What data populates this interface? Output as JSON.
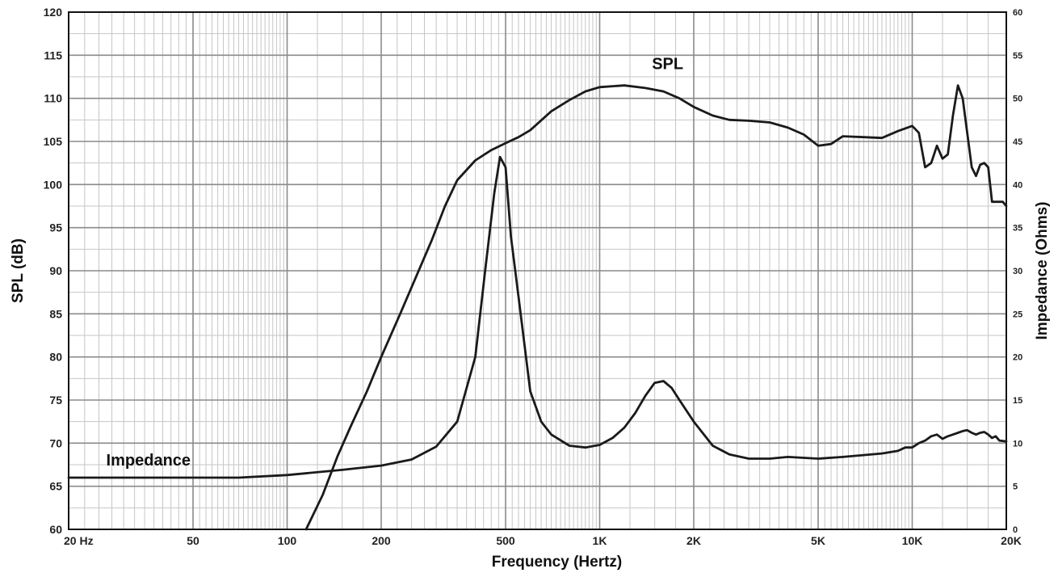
{
  "chart_data": {
    "type": "line",
    "xlabel": "Frequency (Hertz)",
    "ylabel_left": "SPL (dB)",
    "ylabel_right": "Impedance (Ohms)",
    "x_scale": "log",
    "xlim": [
      20,
      20000
    ],
    "ylim_left": [
      60,
      120
    ],
    "ylim_right": [
      0,
      60
    ],
    "grid": true,
    "x_ticks": [
      {
        "value": 20,
        "label": "20  Hz"
      },
      {
        "value": 50,
        "label": "50"
      },
      {
        "value": 100,
        "label": "100"
      },
      {
        "value": 200,
        "label": "200"
      },
      {
        "value": 500,
        "label": "500"
      },
      {
        "value": 1000,
        "label": "1K"
      },
      {
        "value": 2000,
        "label": "2K"
      },
      {
        "value": 5000,
        "label": "5K"
      },
      {
        "value": 10000,
        "label": "10K"
      },
      {
        "value": 20000,
        "label": "20K"
      }
    ],
    "y_ticks_left": [
      60,
      65,
      70,
      75,
      80,
      85,
      90,
      95,
      100,
      105,
      110,
      115,
      120
    ],
    "y_ticks_right": [
      0,
      5,
      10,
      15,
      20,
      25,
      30,
      35,
      40,
      45,
      50,
      55,
      60
    ],
    "annotations": [
      {
        "text": "SPL",
        "x": 1650,
        "y": 113.4
      },
      {
        "text": "Impedance",
        "x": 36,
        "y": 67.4
      }
    ],
    "series": [
      {
        "axis": "left",
        "x": [
          115,
          130,
          145,
          160,
          180,
          200,
          230,
          260,
          290,
          320,
          350,
          400,
          450,
          500,
          550,
          600,
          700,
          800,
          900,
          1000,
          1200,
          1400,
          1600,
          1800,
          2000,
          2300,
          2600,
          3000,
          3500,
          4000,
          4500,
          5000,
          5500,
          6000,
          7000,
          8000,
          9000,
          10000,
          10500,
          11000,
          11500,
          12000,
          12500,
          13000,
          13500,
          14000,
          14500,
          15000,
          15500,
          16000,
          16500,
          17000,
          17500,
          18000,
          18500,
          19000,
          19500,
          20000
        ],
        "y": [
          60,
          64,
          68.5,
          72,
          76,
          80,
          85,
          89.5,
          93.5,
          97.5,
          100.5,
          102.8,
          104,
          104.8,
          105.5,
          106.3,
          108.5,
          109.8,
          110.8,
          111.3,
          111.5,
          111.2,
          110.8,
          110,
          109,
          108,
          107.5,
          107.4,
          107.2,
          106.6,
          105.8,
          104.5,
          104.7,
          105.6,
          105.5,
          105.4,
          106.2,
          106.8,
          106,
          102,
          102.5,
          104.5,
          103,
          103.5,
          108,
          111.5,
          110,
          106,
          102,
          101,
          102.3,
          102.5,
          102,
          98,
          98,
          98,
          98,
          97.5
        ]
      },
      {
        "axis": "right",
        "x": [
          20,
          50,
          70,
          100,
          150,
          200,
          250,
          300,
          350,
          400,
          430,
          460,
          480,
          500,
          520,
          550,
          600,
          650,
          700,
          800,
          900,
          1000,
          1100,
          1200,
          1300,
          1400,
          1500,
          1600,
          1700,
          1800,
          2000,
          2300,
          2600,
          3000,
          3500,
          4000,
          5000,
          6000,
          8000,
          9000,
          9500,
          10000,
          10500,
          11000,
          11500,
          12000,
          12500,
          13000,
          13500,
          14000,
          14500,
          15000,
          15500,
          16000,
          16500,
          17000,
          17500,
          18000,
          18500,
          19000,
          20000
        ],
        "y": [
          6,
          6,
          6,
          6.3,
          6.9,
          7.4,
          8.1,
          9.6,
          12.5,
          20,
          30,
          39,
          43.2,
          42,
          34,
          27,
          16,
          12.5,
          11,
          9.7,
          9.5,
          9.8,
          10.6,
          11.8,
          13.5,
          15.5,
          17,
          17.2,
          16.4,
          15,
          12.5,
          9.7,
          8.7,
          8.2,
          8.2,
          8.4,
          8.2,
          8.4,
          8.8,
          9.1,
          9.5,
          9.5,
          10,
          10.3,
          10.8,
          11,
          10.5,
          10.8,
          11,
          11.2,
          11.4,
          11.5,
          11.2,
          11,
          11.2,
          11.3,
          11,
          10.6,
          10.8,
          10.3,
          10.2
        ]
      }
    ]
  }
}
